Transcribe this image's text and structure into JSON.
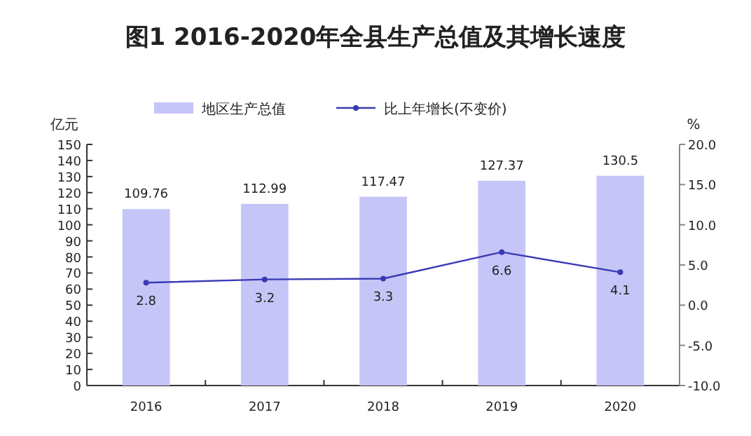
{
  "chart_data": {
    "type": "bar",
    "title": "图1 2016-2020年全县生产总值及其增长速度",
    "ylabel": "亿元",
    "y2label": "%",
    "categories": [
      "2016",
      "2017",
      "2018",
      "2019",
      "2020"
    ],
    "series": [
      {
        "name": "地区生产总值",
        "color": "#c5c5f8",
        "values": [
          109.76,
          112.99,
          117.47,
          127.37,
          130.5
        ]
      },
      {
        "name": "比上年增长(不变价)",
        "type": "line",
        "axis": "y2",
        "color": "#3a3ab4",
        "marker": "circle",
        "values": [
          2.8,
          3.2,
          3.3,
          6.6,
          4.1
        ]
      }
    ],
    "ylim": [
      0,
      150
    ],
    "yticks": [
      0,
      10,
      20,
      30,
      40,
      50,
      60,
      70,
      80,
      90,
      100,
      110,
      120,
      130,
      140,
      150
    ],
    "y2lim": [
      -10,
      20
    ],
    "y2ticks": [
      {
        "value": -10,
        "label": "-10.0"
      },
      {
        "value": -5,
        "label": "-5.0"
      },
      {
        "value": 0,
        "label": "0.0"
      },
      {
        "value": 5,
        "label": "5.0"
      },
      {
        "value": 10,
        "label": "10.0"
      },
      {
        "value": 15,
        "label": "15.0"
      },
      {
        "value": 20,
        "label": "20.0"
      }
    ],
    "data_labels": true,
    "grid": false,
    "legend": "top"
  }
}
